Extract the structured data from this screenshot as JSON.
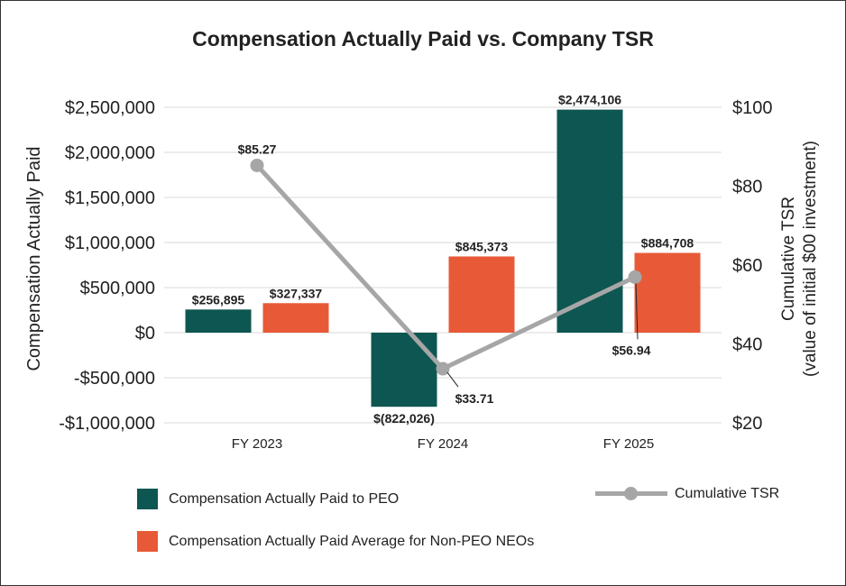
{
  "chart_data": {
    "type": "bar",
    "title": "Compensation Actually Paid vs. Company TSR",
    "categories": [
      "FY 2023",
      "FY 2024",
      "FY 2025"
    ],
    "series": [
      {
        "name": "Compensation Actually Paid to PEO",
        "type": "bar",
        "axis": "left",
        "color": "#0e5651",
        "values": [
          256895,
          -822026,
          2474106
        ],
        "labels": [
          "$256,895",
          "$(822,026)",
          "$2,474,106"
        ]
      },
      {
        "name": "Compensation Actually Paid Average for Non-PEO NEOs",
        "type": "bar",
        "axis": "left",
        "color": "#e85a37",
        "values": [
          327337,
          845373,
          884708
        ],
        "labels": [
          "$327,337",
          "$845,373",
          "$884,708"
        ]
      },
      {
        "name": "Cumulative TSR",
        "type": "line",
        "axis": "right",
        "color": "#a6a6a6",
        "values": [
          85.27,
          33.71,
          56.94
        ],
        "labels": [
          "$85.27",
          "$33.71",
          "$56.94"
        ]
      }
    ],
    "ylabel": "Compensation Actually Paid",
    "ylabel_right_lines": [
      "Cumulative TSR",
      "(value of initial $00 investment)"
    ],
    "ylim": [
      -1000000,
      2500000
    ],
    "yticks": [
      2500000,
      2000000,
      1500000,
      1000000,
      500000,
      0,
      -500000,
      -1000000
    ],
    "ytick_labels": [
      "$2,500,000",
      "$2,000,000",
      "$1,500,000",
      "$1,000,000",
      "$500,000",
      "$0",
      "-$500,000",
      "-$1,000,000"
    ],
    "ylim_right": [
      20,
      100
    ],
    "yticks_right": [
      100,
      80,
      60,
      40,
      20
    ],
    "ytick_labels_right": [
      "$100",
      "$80",
      "$60",
      "$40",
      "$20"
    ],
    "grid": true,
    "legend_position": "bottom"
  }
}
